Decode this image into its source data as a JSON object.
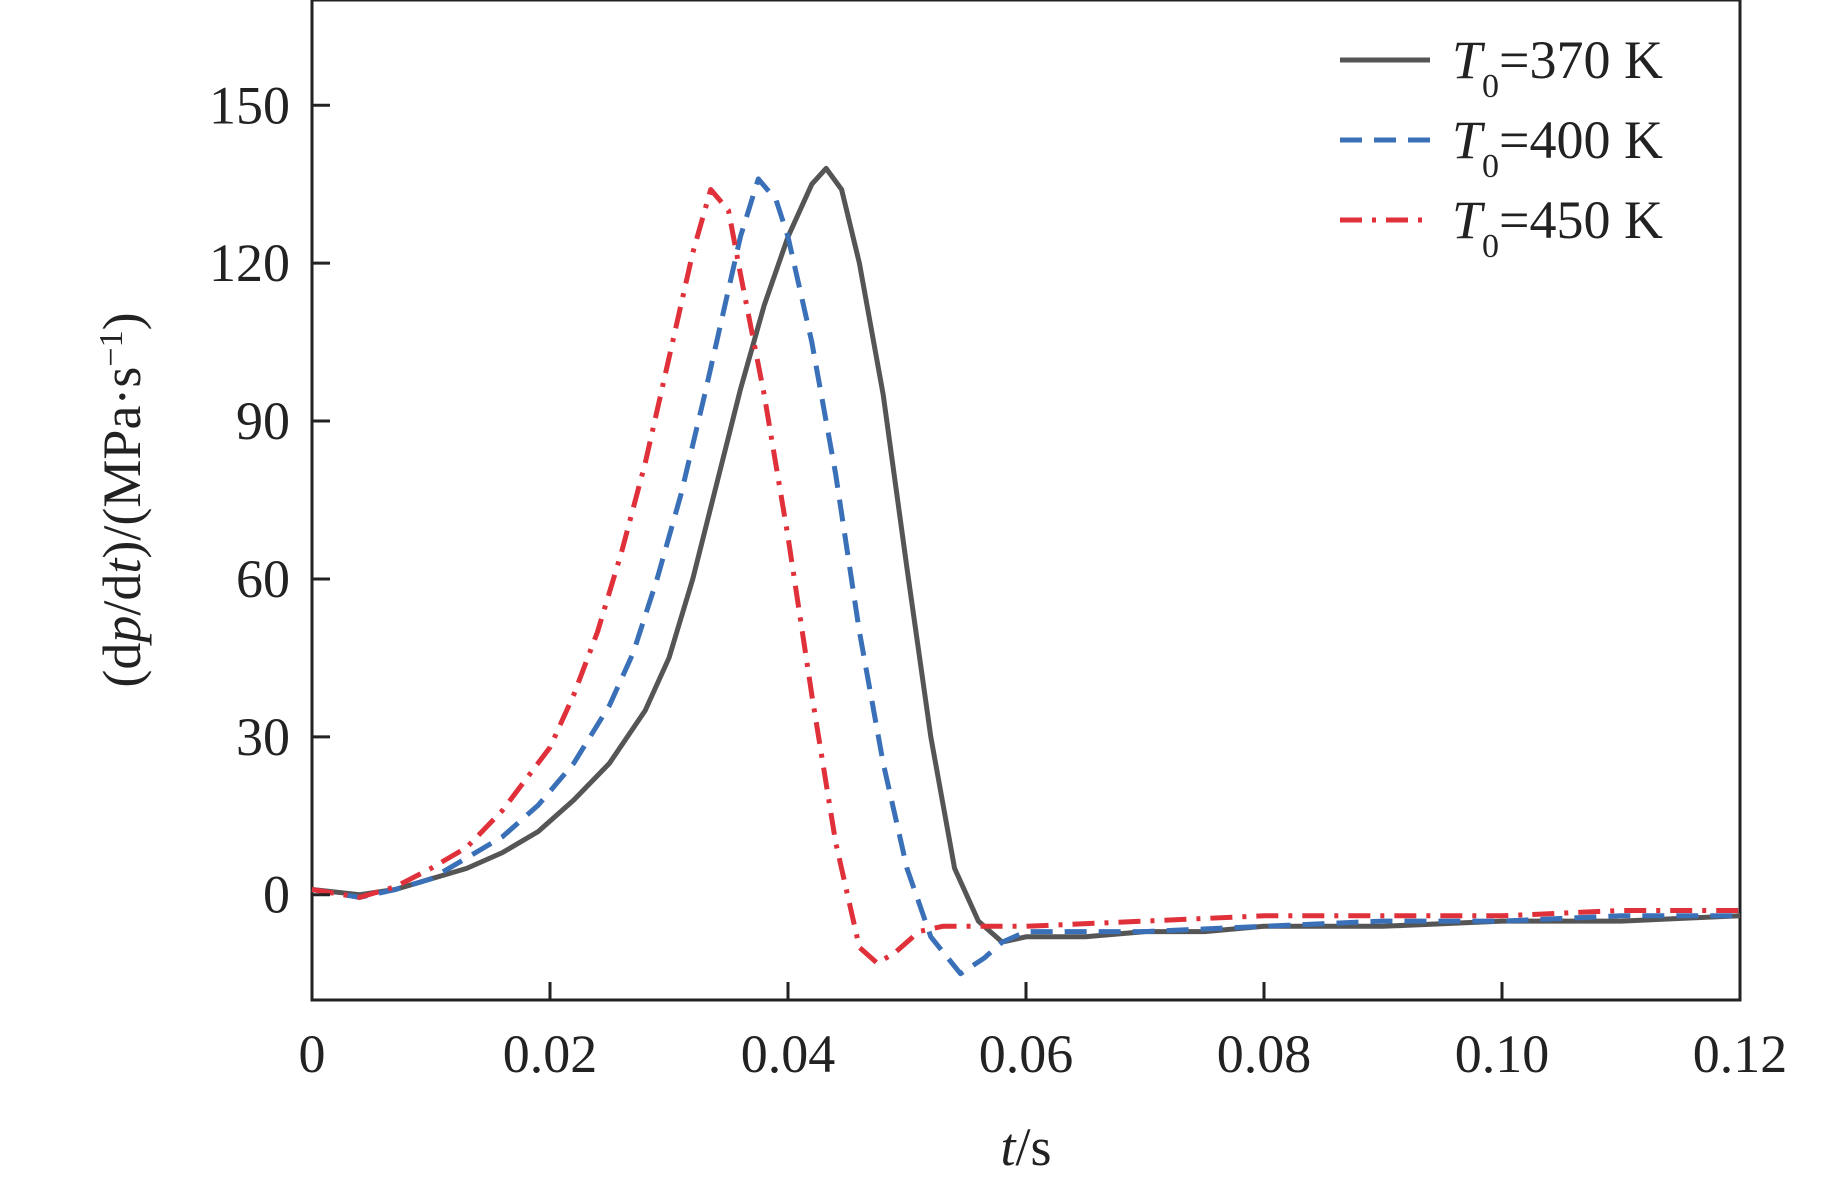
{
  "chart_data": {
    "type": "line",
    "xlabel": {
      "var": "t",
      "unit": "/s"
    },
    "ylabel": {
      "prefix": "(d",
      "var1": "p",
      "mid": "/d",
      "var2": "t",
      "post": ")/(MPa·s",
      "sup": "−1",
      "end": ")"
    },
    "xlim": [
      0,
      0.12
    ],
    "ylim": [
      -20,
      170
    ],
    "xticks": [
      0,
      0.02,
      0.04,
      0.06,
      0.08,
      0.1,
      0.12
    ],
    "xtick_labels": [
      "0",
      "0.02",
      "0.04",
      "0.06",
      "0.08",
      "0.10",
      "0.12"
    ],
    "yticks": [
      0,
      30,
      60,
      90,
      120,
      150
    ],
    "ytick_labels": [
      "0",
      "30",
      "60",
      "90",
      "120",
      "150"
    ],
    "grid": false,
    "legend_position": "top-right",
    "series": [
      {
        "name": "T0=370 K",
        "label": {
          "var": "T",
          "sub": "0",
          "rest": "=370 K"
        },
        "color": "#555555",
        "dash": "solid",
        "points": [
          [
            0,
            1
          ],
          [
            0.004,
            0
          ],
          [
            0.007,
            1
          ],
          [
            0.01,
            3
          ],
          [
            0.013,
            5
          ],
          [
            0.016,
            8
          ],
          [
            0.019,
            12
          ],
          [
            0.022,
            18
          ],
          [
            0.025,
            25
          ],
          [
            0.028,
            35
          ],
          [
            0.03,
            45
          ],
          [
            0.032,
            60
          ],
          [
            0.034,
            78
          ],
          [
            0.036,
            96
          ],
          [
            0.038,
            112
          ],
          [
            0.04,
            125
          ],
          [
            0.042,
            135
          ],
          [
            0.0432,
            138
          ],
          [
            0.0445,
            134
          ],
          [
            0.046,
            120
          ],
          [
            0.048,
            95
          ],
          [
            0.05,
            62
          ],
          [
            0.052,
            30
          ],
          [
            0.054,
            5
          ],
          [
            0.056,
            -5
          ],
          [
            0.058,
            -9
          ],
          [
            0.06,
            -8
          ],
          [
            0.065,
            -8
          ],
          [
            0.07,
            -7
          ],
          [
            0.075,
            -7
          ],
          [
            0.08,
            -6
          ],
          [
            0.085,
            -6
          ],
          [
            0.09,
            -6
          ],
          [
            0.1,
            -5
          ],
          [
            0.11,
            -5
          ],
          [
            0.12,
            -4
          ]
        ]
      },
      {
        "name": "T0=400 K",
        "label": {
          "var": "T",
          "sub": "0",
          "rest": "=400 K"
        },
        "color": "#3a70b8",
        "dash": "dashed",
        "points": [
          [
            0,
            1
          ],
          [
            0.004,
            -0.5
          ],
          [
            0.007,
            1
          ],
          [
            0.01,
            3
          ],
          [
            0.013,
            7
          ],
          [
            0.016,
            11
          ],
          [
            0.019,
            17
          ],
          [
            0.022,
            25
          ],
          [
            0.025,
            36
          ],
          [
            0.027,
            46
          ],
          [
            0.029,
            60
          ],
          [
            0.031,
            76
          ],
          [
            0.033,
            95
          ],
          [
            0.035,
            115
          ],
          [
            0.036,
            125
          ],
          [
            0.0375,
            136
          ],
          [
            0.039,
            132
          ],
          [
            0.04,
            125
          ],
          [
            0.042,
            105
          ],
          [
            0.044,
            80
          ],
          [
            0.046,
            50
          ],
          [
            0.048,
            25
          ],
          [
            0.05,
            5
          ],
          [
            0.052,
            -8
          ],
          [
            0.0545,
            -15
          ],
          [
            0.0565,
            -12
          ],
          [
            0.058,
            -9
          ],
          [
            0.06,
            -7
          ],
          [
            0.07,
            -7
          ],
          [
            0.08,
            -6
          ],
          [
            0.09,
            -5
          ],
          [
            0.1,
            -5
          ],
          [
            0.11,
            -4
          ],
          [
            0.12,
            -4
          ]
        ]
      },
      {
        "name": "T0=450 K",
        "label": {
          "var": "T",
          "sub": "0",
          "rest": "=450 K"
        },
        "color": "#e0303a",
        "dash": "dashdot",
        "points": [
          [
            0,
            1
          ],
          [
            0.004,
            -0.5
          ],
          [
            0.007,
            1.5
          ],
          [
            0.01,
            5
          ],
          [
            0.013,
            9
          ],
          [
            0.016,
            16
          ],
          [
            0.018,
            22
          ],
          [
            0.02,
            28
          ],
          [
            0.022,
            38
          ],
          [
            0.024,
            50
          ],
          [
            0.026,
            65
          ],
          [
            0.028,
            82
          ],
          [
            0.03,
            102
          ],
          [
            0.032,
            122
          ],
          [
            0.0335,
            134
          ],
          [
            0.035,
            130
          ],
          [
            0.036,
            118
          ],
          [
            0.038,
            95
          ],
          [
            0.04,
            68
          ],
          [
            0.042,
            38
          ],
          [
            0.044,
            10
          ],
          [
            0.046,
            -10
          ],
          [
            0.0475,
            -13
          ],
          [
            0.049,
            -11
          ],
          [
            0.051,
            -7
          ],
          [
            0.053,
            -6
          ],
          [
            0.06,
            -6
          ],
          [
            0.07,
            -5
          ],
          [
            0.08,
            -4
          ],
          [
            0.09,
            -4
          ],
          [
            0.1,
            -4
          ],
          [
            0.11,
            -3
          ],
          [
            0.12,
            -3
          ]
        ]
      }
    ]
  }
}
